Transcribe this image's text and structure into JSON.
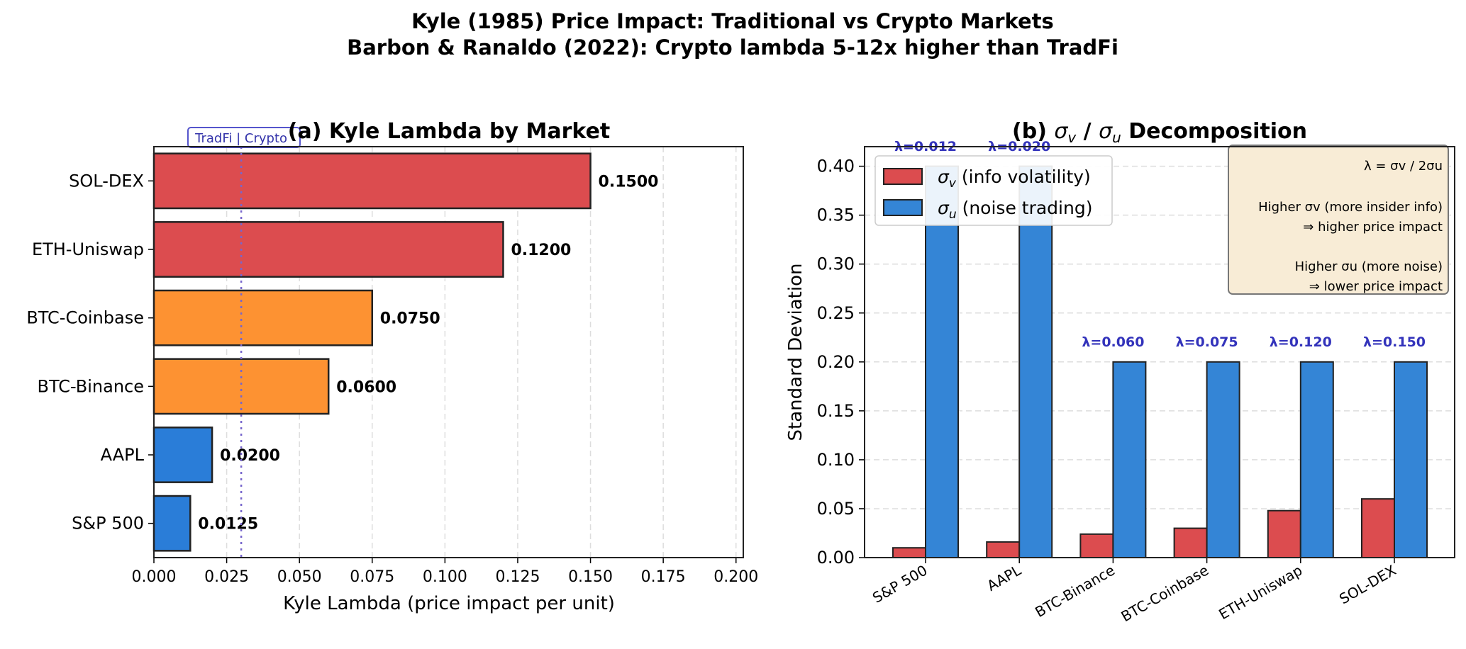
{
  "suptitle": [
    "Kyle (1985) Price Impact: Traditional vs Crypto Markets",
    "Barbon & Ranaldo (2022): Crypto lambda 5-12x higher than TradFi"
  ],
  "colors": {
    "red": "#dc4c4f",
    "orange": "#fd9232",
    "blue": "#2a7dd8",
    "blue_b": "#3485d6",
    "lambda_label": "#3333bb",
    "divider": "#7766cc",
    "annot_bg": "#f8ecd6"
  },
  "chart_data": [
    {
      "type": "bar",
      "orientation": "horizontal",
      "title": "(a) Kyle Lambda by Market",
      "xlabel": "Kyle Lambda (price impact per unit)",
      "ylabel": "",
      "categories": [
        "S&P 500",
        "AAPL",
        "BTC-Binance",
        "BTC-Coinbase",
        "ETH-Uniswap",
        "SOL-DEX"
      ],
      "values": [
        0.0125,
        0.02,
        0.06,
        0.075,
        0.12,
        0.15
      ],
      "value_labels": [
        "0.0125",
        "0.0200",
        "0.0600",
        "0.0750",
        "0.1200",
        "0.1500"
      ],
      "bar_colors": [
        "blue",
        "blue",
        "orange",
        "orange",
        "red",
        "red"
      ],
      "xlim": [
        0,
        0.2025
      ],
      "xticks": [
        "0.000",
        "0.025",
        "0.050",
        "0.075",
        "0.100",
        "0.125",
        "0.150",
        "0.175",
        "0.200"
      ],
      "grid": "x dashed",
      "divider": {
        "x": 0.03,
        "label": "TradFi | Crypto"
      }
    },
    {
      "type": "bar",
      "orientation": "vertical",
      "title_parts": [
        "(b) ",
        "σ",
        "v",
        " / ",
        "σ",
        "u",
        " Decomposition"
      ],
      "xlabel": "",
      "ylabel": "Standard Deviation",
      "categories": [
        "S&P 500",
        "AAPL",
        "BTC-Binance",
        "BTC-Coinbase",
        "ETH-Uniswap",
        "SOL-DEX"
      ],
      "series": [
        {
          "name": "σv (info volatility)",
          "name_sym": "σ",
          "name_sub": "v",
          "name_rest": " (info volatility)",
          "color": "red",
          "values": [
            0.01,
            0.016,
            0.024,
            0.03,
            0.048,
            0.06
          ]
        },
        {
          "name": "σu (noise trading)",
          "name_sym": "σ",
          "name_sub": "u",
          "name_rest": " (noise trading)",
          "color": "blue_b",
          "values": [
            0.4,
            0.4,
            0.2,
            0.2,
            0.2,
            0.2
          ]
        }
      ],
      "lambda_labels": [
        "λ=0.012",
        "λ=0.020",
        "λ=0.060",
        "λ=0.075",
        "λ=0.120",
        "λ=0.150"
      ],
      "ylim": [
        0,
        0.42
      ],
      "yticks": [
        "0.00",
        "0.05",
        "0.10",
        "0.15",
        "0.20",
        "0.25",
        "0.30",
        "0.35",
        "0.40"
      ],
      "grid": "y dashed",
      "legend": "top-left",
      "annotation": {
        "formula": "λ = σv / 2σu",
        "lines": [
          "Higher σv (more insider info)",
          "⇒ higher price impact",
          "",
          "Higher σu (more noise)",
          "⇒ lower price impact"
        ]
      }
    }
  ]
}
